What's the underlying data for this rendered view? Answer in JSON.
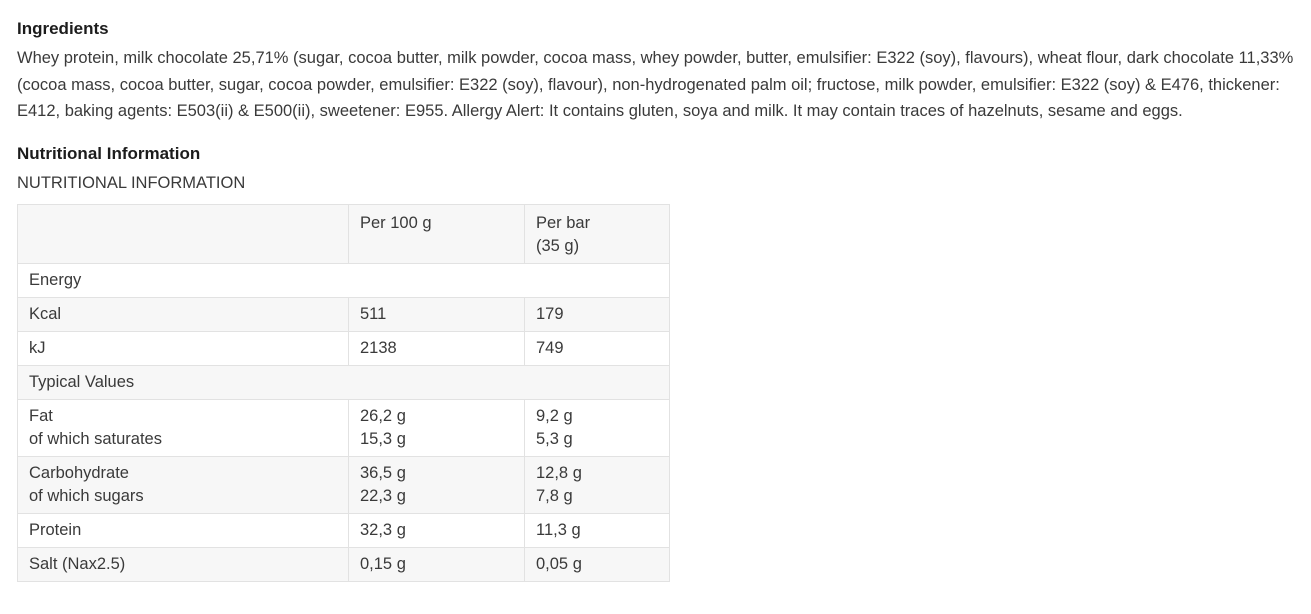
{
  "page": {
    "ingredients_heading": "Ingredients",
    "ingredients_text": "Whey protein, milk chocolate 25,71% (sugar, cocoa butter, milk powder, cocoa mass, whey powder, butter, emulsifier: E322 (soy), flavours), wheat flour, dark chocolate 11,33% (cocoa mass, cocoa butter, sugar, cocoa powder, emulsifier: E322 (soy), flavour), non-hydrogenated palm oil; fructose, milk powder, emulsifier: E322 (soy) & E476, thickener: E412, baking agents: E503(ii) & E500(ii), sweetener: E955. Allergy Alert: It contains gluten, soya and milk. It may contain traces of hazelnuts, sesame and eggs.",
    "nutrition_heading": "Nutritional Information",
    "nutrition_subheading": "NUTRITIONAL INFORMATION"
  },
  "nutrition_table": {
    "columns": [
      {
        "key": "label",
        "label_lines": []
      },
      {
        "key": "per100",
        "label_lines": [
          "Per 100 g"
        ]
      },
      {
        "key": "perbar",
        "label_lines": [
          "Per bar",
          "(35 g)"
        ]
      }
    ],
    "rows": [
      {
        "type": "section",
        "label": "Energy"
      },
      {
        "type": "data",
        "cells": {
          "label": [
            "Kcal"
          ],
          "per100": [
            "511"
          ],
          "perbar": [
            "179"
          ]
        }
      },
      {
        "type": "data",
        "cells": {
          "label": [
            "kJ"
          ],
          "per100": [
            "2138"
          ],
          "perbar": [
            "749"
          ]
        }
      },
      {
        "type": "section",
        "label": "Typical Values"
      },
      {
        "type": "data",
        "cells": {
          "label": [
            "Fat",
            "of which saturates"
          ],
          "per100": [
            "26,2 g",
            "15,3 g"
          ],
          "perbar": [
            "9,2 g",
            "5,3 g"
          ]
        }
      },
      {
        "type": "data",
        "cells": {
          "label": [
            "Carbohydrate",
            "of which sugars"
          ],
          "per100": [
            "36,5 g",
            "22,3 g"
          ],
          "perbar": [
            "12,8 g",
            "7,8 g"
          ]
        }
      },
      {
        "type": "data",
        "cells": {
          "label": [
            "Protein"
          ],
          "per100": [
            "32,3 g"
          ],
          "perbar": [
            "11,3 g"
          ]
        }
      },
      {
        "type": "data",
        "cells": {
          "label": [
            "Salt (Nax2.5)"
          ],
          "per100": [
            "0,15 g"
          ],
          "perbar": [
            "0,05 g"
          ]
        }
      }
    ]
  },
  "colors": {
    "text": "#3a3a3a",
    "heading": "#1c1c1c",
    "border": "#e2e2e2",
    "row_alt": "#f7f7f7",
    "background": "#ffffff"
  }
}
